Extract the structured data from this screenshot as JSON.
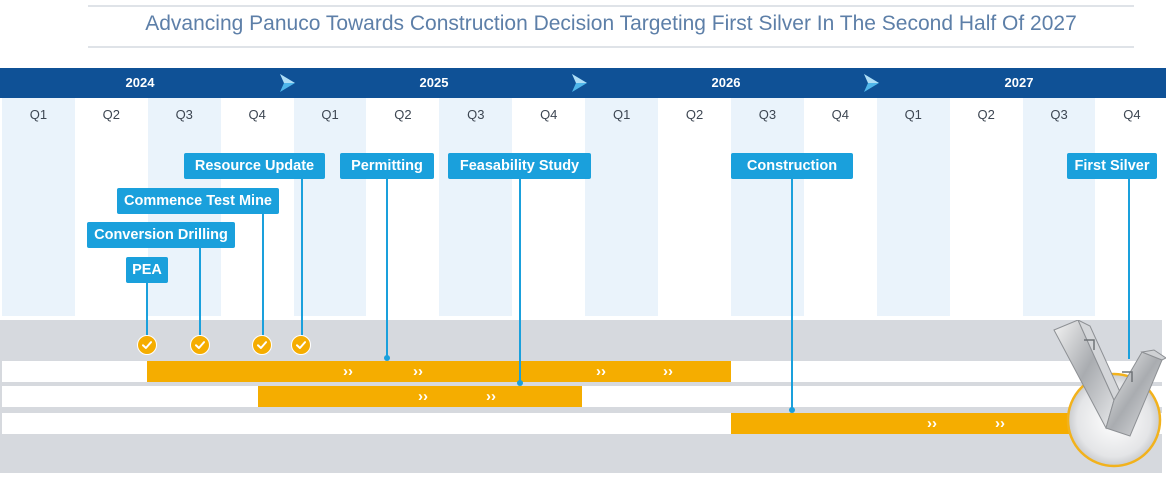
{
  "header": {
    "title": "Advancing Panuco Towards Construction Decision Targeting First Silver In The Second Half Of 2027"
  },
  "timeline": {
    "years": [
      "2024",
      "2025",
      "2026",
      "2027"
    ],
    "quarters": [
      "Q1",
      "Q2",
      "Q3",
      "Q4",
      "Q1",
      "Q2",
      "Q3",
      "Q4",
      "Q1",
      "Q2",
      "Q3",
      "Q4",
      "Q1",
      "Q2",
      "Q3",
      "Q4"
    ]
  },
  "milestones": [
    {
      "label": "PEA",
      "status": "completed"
    },
    {
      "label": "Conversion Drilling",
      "status": "completed"
    },
    {
      "label": "Commence Test Mine",
      "status": "completed"
    },
    {
      "label": "Resource Update",
      "status": "completed"
    },
    {
      "label": "Permitting",
      "status": "in-progress"
    },
    {
      "label": "Feasability Study",
      "status": "in-progress"
    },
    {
      "label": "Construction",
      "status": "planned"
    },
    {
      "label": "First Silver",
      "status": "planned"
    }
  ],
  "colors": {
    "year_bar": "#0f5196",
    "milestone_box": "#1aa0dc",
    "task_bar": "#f5ad00",
    "title_text": "#5d7fa8",
    "quarter_band": "#eaf3fb"
  }
}
